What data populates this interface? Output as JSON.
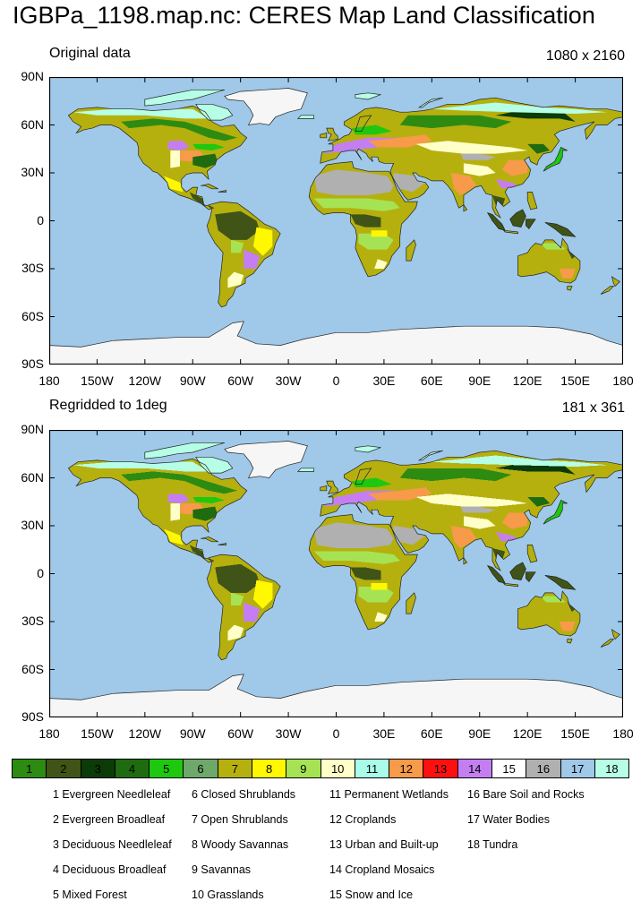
{
  "title": "IGBPa_1198.map.nc: CERES Map Land Classification",
  "panels": [
    {
      "label": "Original data",
      "size": "1080 x 2160"
    },
    {
      "label": "Regridded to 1deg",
      "size": "181 x 361"
    }
  ],
  "axes": {
    "lat_labels": [
      "90N",
      "60N",
      "30N",
      "0",
      "30S",
      "60S",
      "90S"
    ],
    "lon_labels": [
      "180",
      "150W",
      "120W",
      "90W",
      "60W",
      "30W",
      "0",
      "30E",
      "60E",
      "90E",
      "120E",
      "150E",
      "180"
    ]
  },
  "colors": {
    "ocean": "#a0c8e8",
    "land_outline": "#222222"
  },
  "legend": {
    "values": [
      "1",
      "2",
      "3",
      "4",
      "5",
      "6",
      "7",
      "8",
      "9",
      "10",
      "11",
      "12",
      "13",
      "14",
      "15",
      "16",
      "17",
      "18"
    ],
    "colors": [
      "#2e8b12",
      "#3f5416",
      "#0b3b07",
      "#1e6b10",
      "#1ec80f",
      "#6ea86a",
      "#b5b00e",
      "#fff800",
      "#a6e354",
      "#ffffc8",
      "#a8fce8",
      "#f79a4a",
      "#ff1010",
      "#c47ef2",
      "#ffffff",
      "#b0b0b0",
      "#a0c8e8",
      "#b6ffe6"
    ]
  },
  "classes": [
    "1  Evergreen Needleleaf",
    "2  Evergreen Broadleaf",
    "3  Deciduous Needleleaf",
    "4  Deciduous Broadleaf",
    "5  Mixed Forest",
    "6  Closed Shrublands",
    "7  Open Shrublands",
    "8  Woody Savannas",
    "9  Savannas",
    "10  Grasslands",
    "11  Permanent Wetlands",
    "12  Croplands",
    "13  Urban and Built-up",
    "14  Cropland Mosaics",
    "15  Snow and Ice",
    "16  Bare Soil and Rocks",
    "17  Water Bodies",
    "18  Tundra"
  ]
}
